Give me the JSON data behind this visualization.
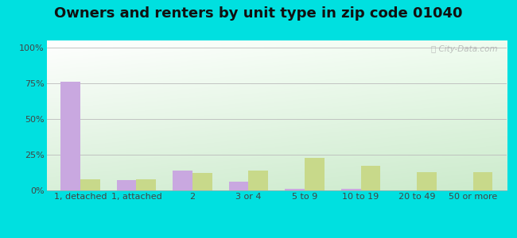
{
  "title": "Owners and renters by unit type in zip code 01040",
  "categories": [
    "1, detached",
    "1, attached",
    "2",
    "3 or 4",
    "5 to 9",
    "10 to 19",
    "20 to 49",
    "50 or more"
  ],
  "owner_values": [
    76,
    7,
    14,
    6,
    1,
    1,
    0,
    0
  ],
  "renter_values": [
    8,
    8,
    12,
    14,
    23,
    17,
    13,
    13
  ],
  "owner_color": "#c9a8e0",
  "renter_color": "#c8d98a",
  "background_outer": "#00e0e0",
  "yticks": [
    0,
    25,
    50,
    75,
    100
  ],
  "ytick_labels": [
    "0%",
    "25%",
    "50%",
    "75%",
    "100%"
  ],
  "ylim": [
    0,
    105
  ],
  "bar_width": 0.35,
  "watermark": "City-Data.com",
  "title_fontsize": 13,
  "tick_fontsize": 8,
  "legend_fontsize": 9,
  "bg_top_left": "#ffffff",
  "bg_bottom_right": "#c8e8c8"
}
